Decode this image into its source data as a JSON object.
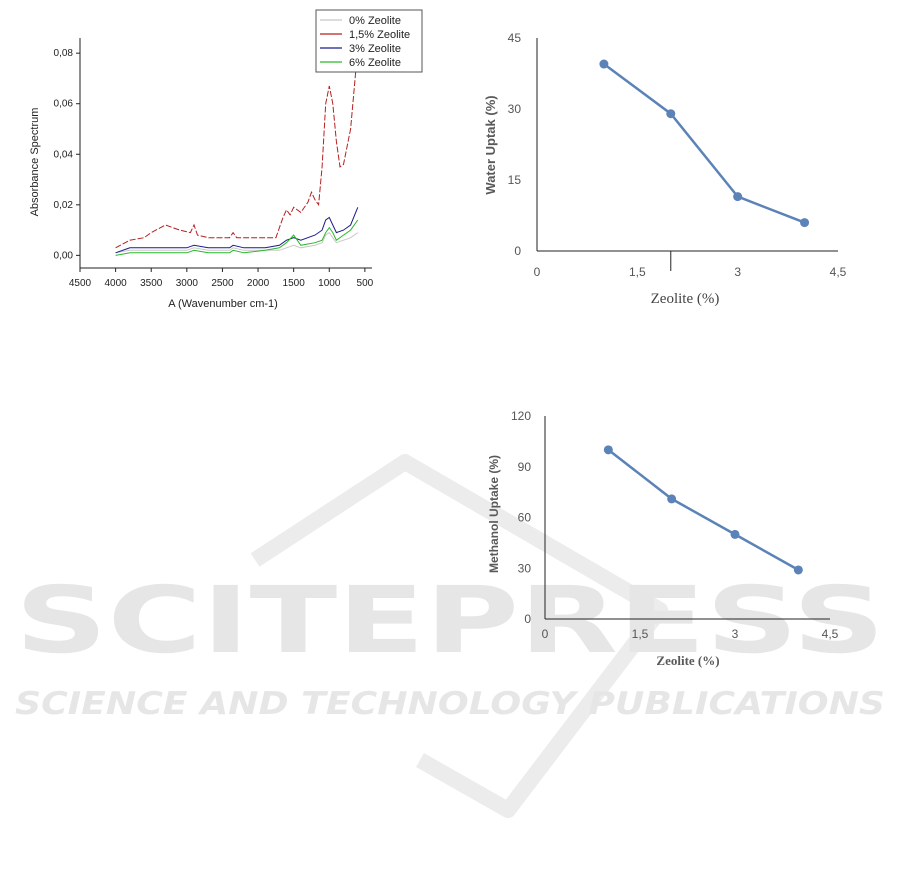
{
  "watermark": {
    "line1": "SCITEPRESS",
    "line2": "SCIENCE AND TECHNOLOGY PUBLICATIONS",
    "color": "#e4e4e4"
  },
  "chart_data": [
    {
      "id": "ftir",
      "type": "line",
      "title": "",
      "xlabel": "A (Wavenumber cm-1)",
      "ylabel": "Absorbance Spectrum",
      "xlim": [
        4500,
        400
      ],
      "ylim": [
        -0.005,
        0.086
      ],
      "x_ticks": [
        4500,
        4000,
        3500,
        3000,
        2500,
        2000,
        1500,
        1000,
        500
      ],
      "y_ticks": [
        0.0,
        0.02,
        0.04,
        0.06,
        0.08
      ],
      "y_tick_labels": [
        "0,00",
        "0,02",
        "0,04",
        "0,06",
        "0,08"
      ],
      "legend_position": "top-right",
      "series": [
        {
          "name": "0% Zeolite",
          "color": "#c8c8c8",
          "x": [
            4000,
            3800,
            3600,
            3300,
            3000,
            2900,
            2700,
            2400,
            2350,
            2200,
            1900,
            1700,
            1600,
            1500,
            1400,
            1200,
            1100,
            1050,
            1000,
            950,
            900,
            800,
            700,
            600
          ],
          "y": [
            0.001,
            0.002,
            0.002,
            0.002,
            0.002,
            0.003,
            0.002,
            0.002,
            0.003,
            0.002,
            0.002,
            0.002,
            0.003,
            0.004,
            0.003,
            0.004,
            0.005,
            0.008,
            0.009,
            0.007,
            0.005,
            0.006,
            0.007,
            0.009
          ]
        },
        {
          "name": "1,5% Zeolite",
          "color": "#b52020",
          "x": [
            4000,
            3800,
            3600,
            3500,
            3300,
            3100,
            2950,
            2900,
            2850,
            2700,
            2400,
            2350,
            2300,
            2000,
            1750,
            1650,
            1600,
            1550,
            1500,
            1400,
            1300,
            1250,
            1200,
            1150,
            1100,
            1050,
            1000,
            950,
            900,
            850,
            800,
            700,
            600
          ],
          "y": [
            0.003,
            0.006,
            0.007,
            0.009,
            0.012,
            0.01,
            0.009,
            0.012,
            0.008,
            0.007,
            0.007,
            0.009,
            0.007,
            0.007,
            0.007,
            0.015,
            0.018,
            0.016,
            0.019,
            0.017,
            0.021,
            0.025,
            0.022,
            0.02,
            0.035,
            0.06,
            0.067,
            0.06,
            0.045,
            0.035,
            0.036,
            0.05,
            0.082
          ]
        },
        {
          "name": "3% Zeolite",
          "color": "#1c1c8a",
          "x": [
            4000,
            3800,
            3600,
            3300,
            3000,
            2900,
            2700,
            2400,
            2350,
            2200,
            1900,
            1700,
            1600,
            1500,
            1400,
            1200,
            1100,
            1050,
            1000,
            950,
            900,
            800,
            700,
            600
          ],
          "y": [
            0.001,
            0.003,
            0.003,
            0.003,
            0.003,
            0.004,
            0.003,
            0.003,
            0.004,
            0.003,
            0.003,
            0.004,
            0.006,
            0.007,
            0.006,
            0.008,
            0.01,
            0.014,
            0.015,
            0.012,
            0.009,
            0.01,
            0.012,
            0.019
          ]
        },
        {
          "name": "6% Zeolite",
          "color": "#2ab82a",
          "x": [
            4000,
            3800,
            3600,
            3300,
            3000,
            2900,
            2700,
            2400,
            2350,
            2200,
            1900,
            1700,
            1600,
            1500,
            1400,
            1200,
            1100,
            1050,
            1000,
            950,
            900,
            800,
            700,
            600
          ],
          "y": [
            0.0,
            0.001,
            0.001,
            0.001,
            0.001,
            0.002,
            0.001,
            0.001,
            0.002,
            0.001,
            0.002,
            0.003,
            0.005,
            0.008,
            0.004,
            0.005,
            0.006,
            0.009,
            0.011,
            0.009,
            0.006,
            0.008,
            0.01,
            0.014
          ]
        }
      ]
    },
    {
      "id": "water",
      "type": "line",
      "title": "",
      "xlabel": "Zeolite (%)",
      "ylabel": "Water Uptak (%)",
      "xlim": [
        0,
        4.5
      ],
      "ylim": [
        0,
        45
      ],
      "x_ticks": [
        0,
        1.5,
        3,
        4.5
      ],
      "x_tick_labels": [
        "0",
        "1,5",
        "3",
        "4,5"
      ],
      "y_ticks": [
        0,
        15,
        30,
        45
      ],
      "y_tick_labels": [
        "0",
        "15",
        "30",
        "45"
      ],
      "color": "#5b83b8",
      "x": [
        1,
        2,
        3,
        4
      ],
      "y": [
        39.5,
        29,
        11.5,
        6
      ]
    },
    {
      "id": "methanol",
      "type": "line",
      "title": "",
      "xlabel": "Zeolite (%)",
      "ylabel": "Methanol Uptake (%)",
      "xlim": [
        0,
        4.5
      ],
      "ylim": [
        0,
        120
      ],
      "x_ticks": [
        0,
        1.5,
        3,
        4.5
      ],
      "x_tick_labels": [
        "0",
        "1,5",
        "3",
        "4,5"
      ],
      "y_ticks": [
        0,
        30,
        60,
        90,
        120
      ],
      "y_tick_labels": [
        "0",
        "30",
        "60",
        "90",
        "120"
      ],
      "color": "#5b83b8",
      "x": [
        1,
        2,
        3,
        4
      ],
      "y": [
        100,
        71,
        50,
        29
      ]
    }
  ]
}
